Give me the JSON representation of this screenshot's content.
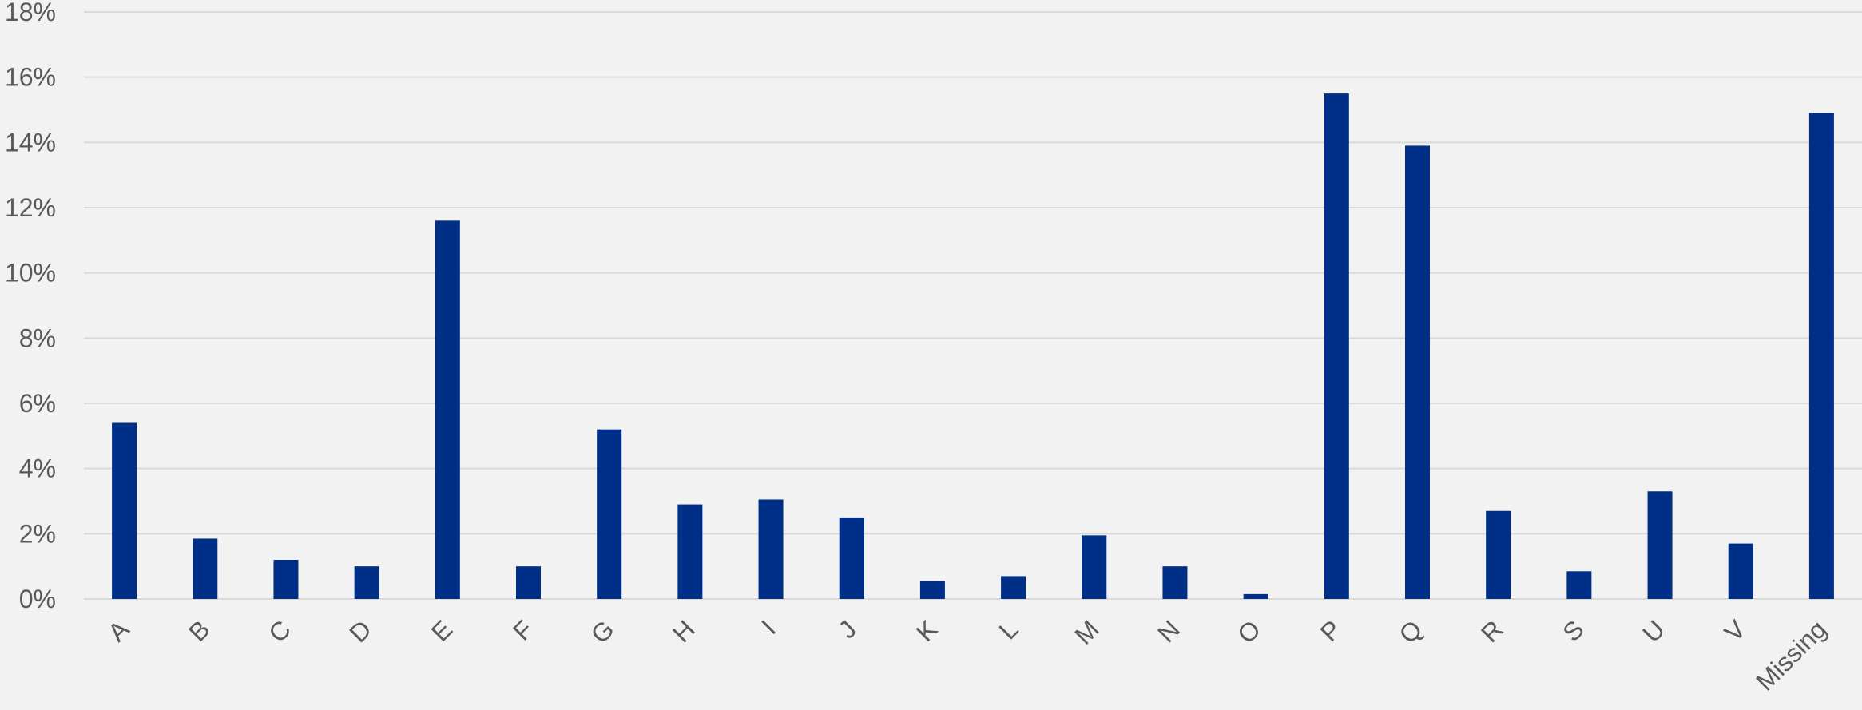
{
  "chart_data": {
    "type": "bar",
    "title": "",
    "xlabel": "",
    "ylabel": "",
    "categories": [
      "A",
      "B",
      "C",
      "D",
      "E",
      "F",
      "G",
      "H",
      "I",
      "J",
      "K",
      "L",
      "M",
      "N",
      "O",
      "P",
      "Q",
      "R",
      "S",
      "U",
      "V",
      "Missing"
    ],
    "values": [
      5.4,
      1.85,
      1.2,
      1.0,
      11.6,
      1.0,
      5.2,
      2.9,
      3.05,
      2.5,
      0.55,
      0.7,
      1.95,
      1.0,
      0.15,
      15.5,
      13.9,
      2.7,
      0.85,
      3.3,
      1.7,
      14.9
    ],
    "ylim": [
      0,
      18
    ],
    "yticks": [
      0,
      2,
      4,
      6,
      8,
      10,
      12,
      14,
      16,
      18
    ],
    "ytick_labels": [
      "0%",
      "2%",
      "4%",
      "6%",
      "8%",
      "10%",
      "12%",
      "14%",
      "16%",
      "18%"
    ],
    "grid": true,
    "legend": "none",
    "bar_color": "#002f87"
  }
}
